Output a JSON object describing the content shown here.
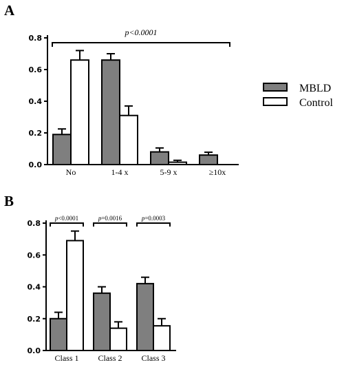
{
  "colors": {
    "mbld": "#7f7f7f",
    "control": "#ffffff",
    "stroke": "#000000"
  },
  "legend": {
    "series1": "MBLD",
    "series2": "Control"
  },
  "chart_data": [
    {
      "panel": "A",
      "type": "bar",
      "categories": [
        "No",
        "1-4 x",
        "5-9 x",
        "≥10x"
      ],
      "series": [
        {
          "name": "MBLD",
          "values": [
            0.19,
            0.66,
            0.08,
            0.06
          ],
          "errors": [
            0.035,
            0.04,
            0.025,
            0.018
          ]
        },
        {
          "name": "Control",
          "values": [
            0.66,
            0.31,
            0.015,
            null
          ],
          "errors": [
            0.06,
            0.06,
            0.012,
            null
          ]
        }
      ],
      "ylim": [
        0,
        0.8
      ],
      "yticks": [
        "0.0",
        "0.2",
        "0.4",
        "0.6",
        "0.8"
      ],
      "annotations": [
        {
          "text": "p<0.0001",
          "from": 0,
          "to": 3
        }
      ]
    },
    {
      "panel": "B",
      "type": "bar",
      "categories": [
        "Class 1",
        "Class 2",
        "Class 3"
      ],
      "series": [
        {
          "name": "MBLD",
          "values": [
            0.2,
            0.36,
            0.42
          ],
          "errors": [
            0.04,
            0.04,
            0.04
          ]
        },
        {
          "name": "Control",
          "values": [
            0.69,
            0.14,
            0.155
          ],
          "errors": [
            0.06,
            0.04,
            0.045
          ]
        }
      ],
      "ylim": [
        0,
        0.8
      ],
      "yticks": [
        "0.0",
        "0.2",
        "0.4",
        "0.6",
        "0.8"
      ],
      "annotations": [
        {
          "p": "p",
          "rest": "<0.0001",
          "group": 0
        },
        {
          "p": "p",
          "rest": "=0.0016",
          "group": 1
        },
        {
          "p": "p",
          "rest": "=0.0003",
          "group": 2
        }
      ]
    }
  ]
}
